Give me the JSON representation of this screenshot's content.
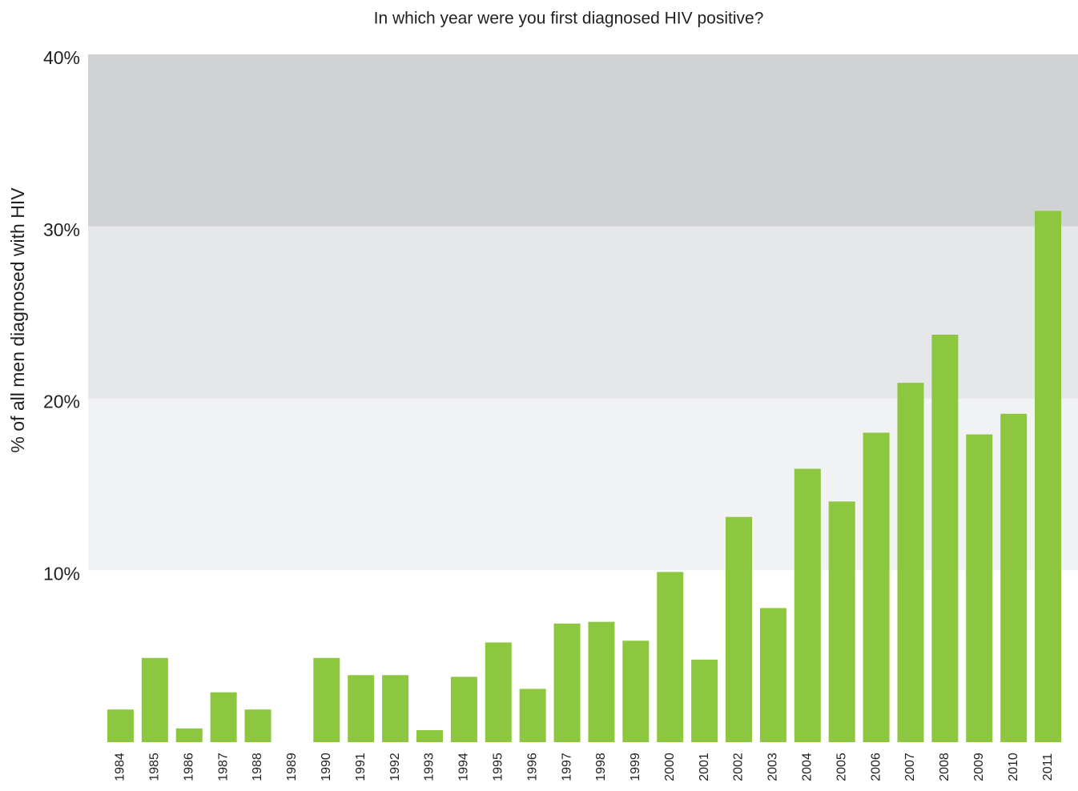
{
  "chart_data": {
    "type": "bar",
    "title": "In which year were you first diagnosed HIV positive?",
    "y_label": "% of all men diagnosed with HIV",
    "categories": [
      "1984",
      "1985",
      "1986",
      "1987",
      "1988",
      "1989",
      "1990",
      "1991",
      "1992",
      "1993",
      "1994",
      "1995",
      "1996",
      "1997",
      "1998",
      "1999",
      "2000",
      "2001",
      "2002",
      "2003",
      "2004",
      "2005",
      "2006",
      "2007",
      "2008",
      "2009",
      "2010",
      "2011"
    ],
    "values": [
      1.9,
      4.9,
      0.8,
      2.9,
      1.9,
      0,
      4.9,
      3.9,
      3.9,
      0.7,
      3.8,
      5.8,
      3.1,
      6.9,
      7.0,
      5.9,
      9.9,
      4.8,
      13.1,
      7.8,
      15.9,
      14.0,
      18.0,
      20.9,
      23.7,
      17.9,
      19.1,
      30.9
    ],
    "color": "#8dc63f",
    "ylim": [
      0,
      40
    ],
    "yticks": [
      {
        "value": 10,
        "label": "10%"
      },
      {
        "value": 20,
        "label": "20%"
      },
      {
        "value": 30,
        "label": "30%"
      },
      {
        "value": 40,
        "label": "40%"
      }
    ],
    "band_colors": [
      "#f1f2f3",
      "#e6e7e8",
      "#d1d2d4"
    ]
  }
}
